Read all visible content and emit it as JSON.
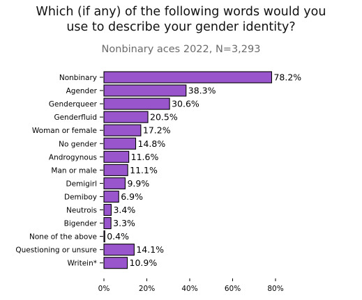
{
  "chart_data": {
    "type": "bar",
    "orientation": "horizontal",
    "title": "Which (if any) of the following words would you\nuse to describe your gender identity?",
    "subtitle": "Nonbinary aces 2022, N=3,293",
    "categories": [
      "Nonbinary",
      "Agender",
      "Genderqueer",
      "Genderfluid",
      "Woman or female",
      "No gender",
      "Androgynous",
      "Man or male",
      "Demigirl",
      "Demiboy",
      "Neutrois",
      "Bigender",
      "None of the above",
      "Questioning or unsure",
      "Writein*"
    ],
    "values": [
      78.2,
      38.3,
      30.6,
      20.5,
      17.2,
      14.8,
      11.6,
      11.1,
      9.9,
      6.9,
      3.4,
      3.3,
      0.4,
      14.1,
      10.9
    ],
    "value_labels": [
      "78.2%",
      "38.3%",
      "30.6%",
      "20.5%",
      "17.2%",
      "14.8%",
      "11.6%",
      "11.1%",
      "9.9%",
      "6.9%",
      "3.4%",
      "3.3%",
      "0.4%",
      "14.1%",
      "10.9%"
    ],
    "x_ticks": [
      0,
      20,
      40,
      60,
      80
    ],
    "x_tick_labels": [
      "0%",
      "20%",
      "40%",
      "60%",
      "80%"
    ],
    "xlim": [
      0,
      80
    ],
    "xlabel": "",
    "ylabel": "",
    "grid": false,
    "bar_color": "#9955cc",
    "bar_edge_color": "#000000"
  }
}
